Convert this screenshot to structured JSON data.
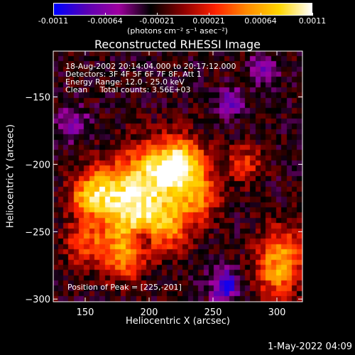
{
  "chart_data": {
    "type": "heatmap",
    "title": "Reconstructed RHESSI Image",
    "xlabel": "Heliocentric X (arcsec)",
    "ylabel": "Heliocentric Y (arcsec)",
    "xlim": [
      125,
      320
    ],
    "ylim": [
      -302,
      -116
    ],
    "x_ticks": [
      150,
      200,
      250,
      300
    ],
    "y_ticks": [
      -150,
      -200,
      -250,
      -300
    ],
    "colorbar": {
      "min": -0.0011,
      "max": 0.0011,
      "tick_labels": [
        "-0.0011",
        "-0.00064",
        "-0.00021",
        "0.00021",
        "0.00064",
        "0.0011"
      ],
      "units_label": "(photons cm⁻² s⁻¹ asec⁻²)",
      "colormap": [
        "#0000ff",
        "#5a00b4",
        "#a000a0",
        "#000000",
        "#8b0000",
        "#ff2200",
        "#ff8c00",
        "#ffd700",
        "#ffffff"
      ]
    },
    "annotations": [
      "18-Aug-2002 20:14:04.000 to 20:17:12.000",
      "Detectors: 3F 4F 5F 6F 7F 8F, Att 1",
      "Energy Range: 12.0 - 25.0 keV",
      "Clean     Total counts: 3.56E+03"
    ],
    "peak_label": "Position of Peak = [225,-201]",
    "peak": [
      225,
      -201
    ],
    "sources": [
      {
        "x": 225,
        "y": -201,
        "amp": 1.0,
        "sigma": 14
      },
      {
        "x": 200,
        "y": -210,
        "amp": 0.85,
        "sigma": 18
      },
      {
        "x": 185,
        "y": -240,
        "amp": 0.75,
        "sigma": 16
      },
      {
        "x": 165,
        "y": -220,
        "amp": 0.7,
        "sigma": 14
      },
      {
        "x": 215,
        "y": -245,
        "amp": 0.65,
        "sigma": 14
      },
      {
        "x": 240,
        "y": -225,
        "amp": 0.55,
        "sigma": 12
      },
      {
        "x": 180,
        "y": -270,
        "amp": 0.6,
        "sigma": 12
      },
      {
        "x": 150,
        "y": -260,
        "amp": 0.5,
        "sigma": 12
      },
      {
        "x": 275,
        "y": -200,
        "amp": 0.45,
        "sigma": 10
      },
      {
        "x": 305,
        "y": -265,
        "amp": 0.6,
        "sigma": 14
      },
      {
        "x": 300,
        "y": -285,
        "amp": 0.5,
        "sigma": 12
      },
      {
        "x": 150,
        "y": -225,
        "amp": 0.45,
        "sigma": 10
      }
    ],
    "negative_sources": [
      {
        "x": 260,
        "y": -290,
        "amp": -0.7,
        "sigma": 8
      },
      {
        "x": 265,
        "y": -155,
        "amp": -0.55,
        "sigma": 7
      },
      {
        "x": 290,
        "y": -130,
        "amp": -0.45,
        "sigma": 7
      },
      {
        "x": 140,
        "y": -170,
        "amp": -0.4,
        "sigma": 8
      },
      {
        "x": 195,
        "y": -255,
        "amp": -0.5,
        "sigma": 6
      }
    ]
  },
  "timestamp": "1-May-2022 04:09"
}
